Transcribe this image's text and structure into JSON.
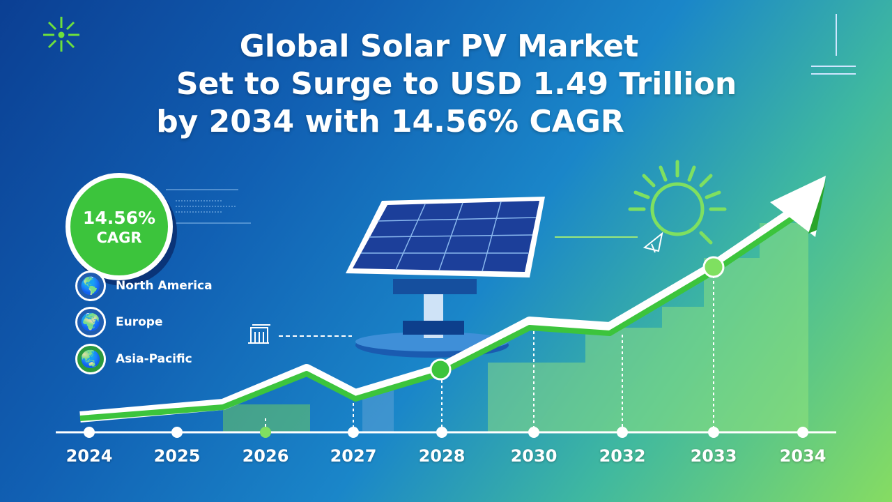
{
  "title": {
    "line1": "Global Solar PV Market",
    "line2": "Set to Surge to USD 1.49 Trillion",
    "line3": "by 2034 with 14.56% CAGR"
  },
  "badge": {
    "value": "14.56%",
    "label": "CAGR"
  },
  "regions": [
    {
      "label": "North America",
      "icon": "globe-americas-icon"
    },
    {
      "label": "Europe",
      "icon": "globe-europe-icon"
    },
    {
      "label": "Asia-Pacific",
      "icon": "globe-asia-icon"
    }
  ],
  "timeline": {
    "years": [
      "2024",
      "2025",
      "2026",
      "2027",
      "2028",
      "2030",
      "2032",
      "2033",
      "2034"
    ]
  },
  "colors": {
    "accent_green": "#3cc43c",
    "dark_blue": "#0b3f93",
    "light_green": "#86dc62"
  }
}
